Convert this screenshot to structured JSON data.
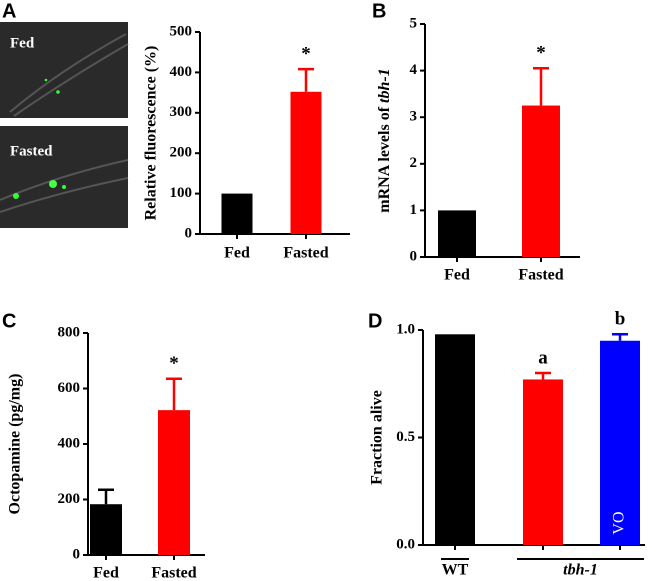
{
  "panel_labels": [
    "A",
    "B",
    "C",
    "D"
  ],
  "images": [
    {
      "label": "Fed"
    },
    {
      "label": "Fasted"
    }
  ],
  "chart_data": [
    {
      "type": "bar",
      "ylabel": "Relative fluorescence (%)",
      "categories": [
        "Fed",
        "Fasted"
      ],
      "values": [
        100,
        352
      ],
      "errors": [
        0,
        56
      ],
      "colors": [
        "#000000",
        "#ff0000"
      ],
      "bar_labels": [
        null,
        "*"
      ],
      "ylim": [
        0,
        500
      ],
      "yticks": [
        0,
        100,
        200,
        300,
        400,
        500
      ]
    },
    {
      "type": "bar",
      "ylabel": [
        {
          "text": "mRNA levels of "
        },
        {
          "text": "tbh-1",
          "italic": true
        }
      ],
      "categories": [
        "Fed",
        "Fasted"
      ],
      "values": [
        1,
        3.25
      ],
      "errors": [
        0,
        0.8
      ],
      "colors": [
        "#000000",
        "#ff0000"
      ],
      "bar_labels": [
        null,
        "*"
      ],
      "ylim": [
        0,
        5
      ],
      "yticks": [
        0,
        1,
        2,
        3,
        4,
        5
      ]
    },
    {
      "type": "bar",
      "ylabel": "Octopamine (pg/mg)",
      "categories": [
        "Fed",
        "Fasted"
      ],
      "values": [
        183,
        522
      ],
      "errors": [
        52,
        113
      ],
      "colors": [
        "#000000",
        "#ff0000"
      ],
      "bar_labels": [
        null,
        "*"
      ],
      "ylim": [
        0,
        800
      ],
      "yticks": [
        0,
        200,
        400,
        600,
        800
      ]
    },
    {
      "type": "bar",
      "ylabel": "Fraction alive",
      "categories": [
        "WT",
        null,
        null
      ],
      "group_label": "tbh-1",
      "values": [
        0.98,
        0.77,
        0.95
      ],
      "errors": [
        0,
        0.03,
        0.03
      ],
      "colors": [
        "#000000",
        "#ff0000",
        "#0000ff"
      ],
      "bar_labels": [
        null,
        "a",
        "b"
      ],
      "inner_labels": [
        null,
        null,
        "VO"
      ],
      "ylim": [
        0,
        1.0
      ],
      "yticks": [
        {
          "value": 0,
          "label": "0.0"
        },
        {
          "value": 0.5,
          "label": "0.5"
        },
        {
          "value": 1.0,
          "label": "1.0"
        }
      ]
    }
  ]
}
